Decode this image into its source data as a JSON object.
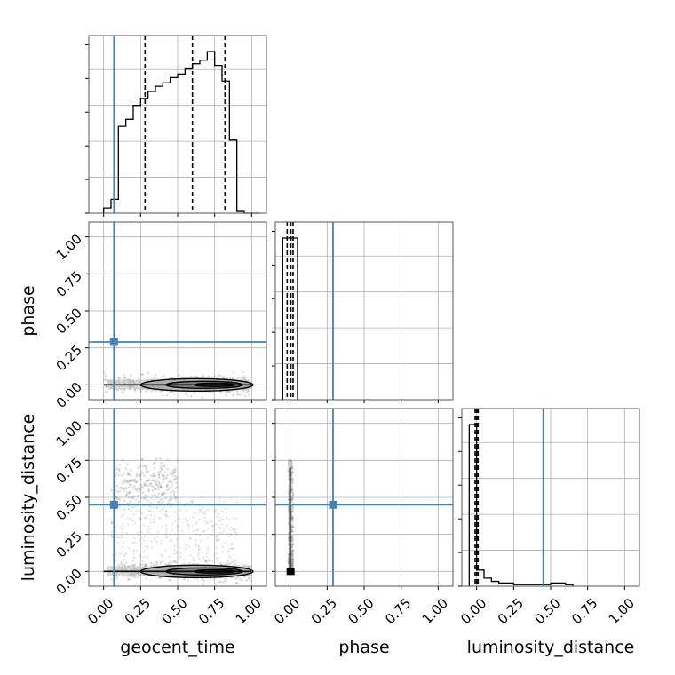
{
  "chart_data": {
    "type": "corner",
    "parameters": [
      "geocent_time",
      "phase",
      "luminosity_distance"
    ],
    "axis_range": [
      -0.1,
      1.1
    ],
    "tick_labels": [
      "0.00",
      "0.25",
      "0.50",
      "0.75",
      "1.00"
    ],
    "grid": true,
    "colors": {
      "truth": "#4682b4",
      "hist": "#000000",
      "grid": "#b0b0b0",
      "points": "#888888"
    },
    "truths": {
      "geocent_time": 0.07,
      "phase": 0.29,
      "luminosity_distance": 0.45
    },
    "histograms": {
      "geocent_time": {
        "bins": [
          0.0,
          0.05,
          0.1,
          0.15,
          0.2,
          0.25,
          0.3,
          0.35,
          0.4,
          0.45,
          0.5,
          0.55,
          0.6,
          0.65,
          0.7,
          0.75,
          0.8,
          0.85,
          0.9,
          0.95,
          1.0,
          1.05
        ],
        "counts": [
          3,
          8,
          50,
          54,
          62,
          66,
          70,
          73,
          75,
          78,
          80,
          83,
          86,
          88,
          93,
          85,
          76,
          42,
          1,
          0,
          0
        ],
        "quantiles": [
          0.28,
          0.6,
          0.82
        ]
      },
      "phase": {
        "bins": [
          -0.05,
          0.0,
          0.05
        ],
        "counts": [
          100,
          100
        ],
        "quantiles": [
          -0.02,
          0.005,
          0.02
        ]
      },
      "luminosity_distance": {
        "bins": [
          -0.05,
          0.0,
          0.05,
          0.1,
          0.15,
          0.2,
          0.25,
          0.3,
          0.35,
          0.4,
          0.45,
          0.5,
          0.55,
          0.6,
          0.65
        ],
        "counts": [
          100,
          10,
          5,
          3,
          2,
          2,
          1,
          1,
          1,
          1,
          1,
          2,
          2,
          1
        ],
        "quantiles": [
          -0.01,
          0.0,
          0.01
        ]
      }
    },
    "scatter_clusters": [
      {
        "panel": "geocent_time-phase",
        "x_range": [
          0.0,
          1.0
        ],
        "y_center": 0.0,
        "y_spread": 0.03
      },
      {
        "panel": "geocent_time-luminosity_distance",
        "x_range": [
          0.05,
          1.0
        ],
        "y_center": 0.0,
        "y_spread": 0.03
      },
      {
        "panel": "geocent_time-luminosity_distance",
        "x_range": [
          0.05,
          0.5
        ],
        "y_center": 0.58,
        "y_spread": 0.08
      },
      {
        "panel": "phase-luminosity_distance",
        "x_range": [
          -0.01,
          0.02
        ],
        "y_center": 0.3,
        "y_spread": 0.3
      }
    ]
  }
}
